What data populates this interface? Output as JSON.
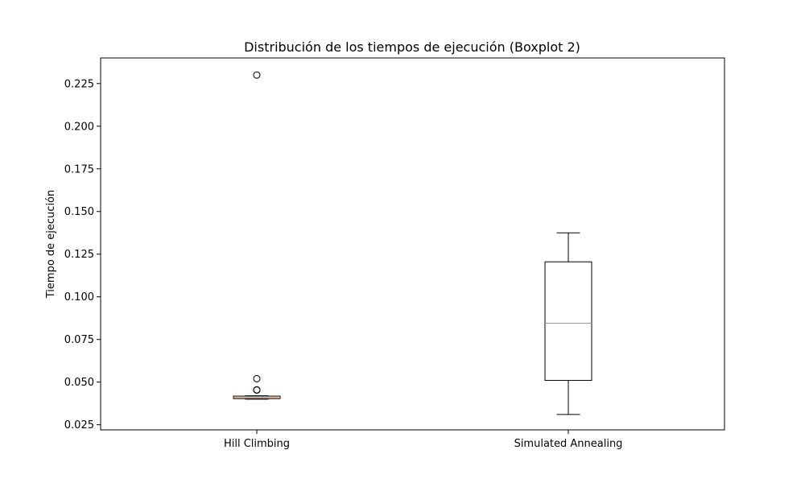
{
  "chart_data": {
    "type": "box",
    "title": "Distribución de los tiempos de ejecución (Boxplot 2)",
    "xlabel": "",
    "ylabel": "Tiempo de ejecución",
    "ylim": [
      0.022,
      0.24
    ],
    "yticks": [
      0.025,
      0.05,
      0.075,
      0.1,
      0.125,
      0.15,
      0.175,
      0.2,
      0.225
    ],
    "ytick_labels": [
      "0.025",
      "0.050",
      "0.075",
      "0.100",
      "0.125",
      "0.150",
      "0.175",
      "0.200",
      "0.225"
    ],
    "grid": false,
    "categories": [
      "Hill Climbing",
      "Simulated Annealing"
    ],
    "boxes": [
      {
        "category": "Hill Climbing",
        "whisker_low": 0.04,
        "q1": 0.0403,
        "median": 0.041,
        "q3": 0.0418,
        "whisker_high": 0.042,
        "outliers": [
          0.0453,
          0.0455,
          0.052,
          0.23
        ]
      },
      {
        "category": "Simulated Annealing",
        "whisker_low": 0.031,
        "q1": 0.051,
        "median": 0.0845,
        "q3": 0.1205,
        "whisker_high": 0.1375,
        "outliers": []
      }
    ],
    "colors": {
      "box": "#000000",
      "median": "#ff7f0e",
      "outlier": "#000000"
    }
  }
}
